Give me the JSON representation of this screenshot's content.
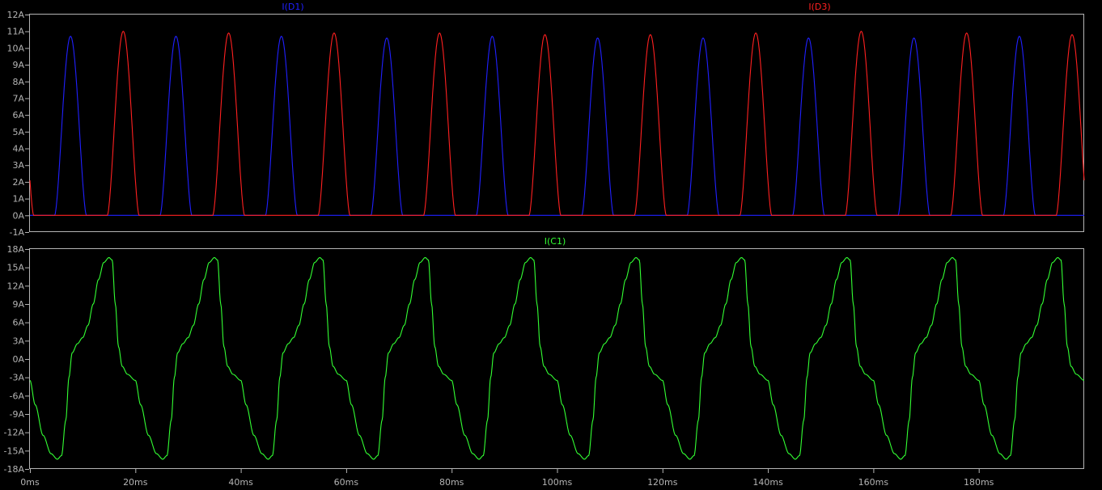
{
  "chart_data": [
    {
      "type": "line",
      "title": "",
      "xlabel": "",
      "ylabel": "",
      "xlim": [
        0,
        200
      ],
      "ylim": [
        -1,
        12
      ],
      "y_ticks": [
        "12A",
        "11A",
        "10A",
        "9A",
        "8A",
        "7A",
        "6A",
        "5A",
        "4A",
        "3A",
        "2A",
        "1A",
        "0A",
        "-1A"
      ],
      "y_tick_values": [
        12,
        11,
        10,
        9,
        8,
        7,
        6,
        5,
        4,
        3,
        2,
        1,
        0,
        -1
      ],
      "grid": false,
      "series": [
        {
          "name": "I(D1)",
          "color": "#2020ff",
          "pulse_period_ms": 20,
          "first_peak_ms": 7.7,
          "base_width_ms": 5.4,
          "peak_values": [
            10.7,
            10.7,
            10.7,
            10.6,
            10.7,
            10.6,
            10.6,
            10.6,
            10.6,
            10.7
          ]
        },
        {
          "name": "I(D3)",
          "color": "#ff2020",
          "pulse_period_ms": 20,
          "first_peak_ms": 17.7,
          "base_width_ms": 5.4,
          "peak_values": [
            11.0,
            10.9,
            10.9,
            10.9,
            10.8,
            10.8,
            10.9,
            11.0,
            10.9,
            10.8
          ]
        }
      ]
    },
    {
      "type": "line",
      "title": "",
      "xlabel": "",
      "ylabel": "",
      "xlim": [
        0,
        200
      ],
      "ylim": [
        -18,
        18
      ],
      "y_ticks": [
        "18A",
        "15A",
        "12A",
        "9A",
        "6A",
        "3A",
        "0A",
        "-3A",
        "-6A",
        "-9A",
        "-12A",
        "-15A",
        "-18A"
      ],
      "y_tick_values": [
        18,
        15,
        12,
        9,
        6,
        3,
        0,
        -3,
        -6,
        -9,
        -12,
        -15,
        -18
      ],
      "x_ticks": [
        "0ms",
        "20ms",
        "40ms",
        "60ms",
        "80ms",
        "100ms",
        "120ms",
        "140ms",
        "160ms",
        "180ms"
      ],
      "x_tick_values": [
        0,
        20,
        40,
        60,
        80,
        100,
        120,
        140,
        160,
        180
      ],
      "grid": false,
      "series": [
        {
          "name": "I(C1)",
          "color": "#33ff33",
          "period_ms": 20,
          "peak_positive": 16.6,
          "peak_negative": -16.4,
          "positive_peak_ms": 15.0,
          "negative_peak_ms": 5.2
        }
      ]
    }
  ]
}
